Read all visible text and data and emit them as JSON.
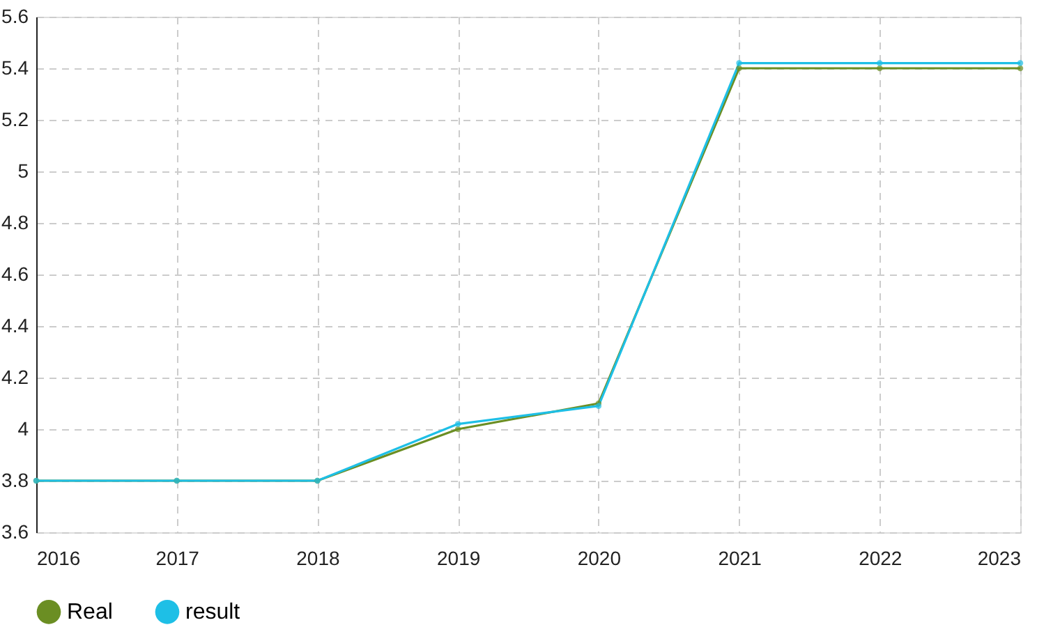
{
  "chart_data": {
    "type": "line",
    "x": [
      2016,
      2017,
      2018,
      2019,
      2020,
      2021,
      2022,
      2023
    ],
    "series": [
      {
        "name": "Real",
        "color": "#6b8e23",
        "values": [
          3.8,
          3.8,
          3.8,
          4.0,
          4.1,
          5.4,
          5.4,
          5.4
        ]
      },
      {
        "name": "result",
        "color": "#1ebfe6",
        "values": [
          3.8,
          3.8,
          3.8,
          4.02,
          4.09,
          5.42,
          5.42,
          5.42
        ]
      }
    ],
    "xlim": [
      2016,
      2023
    ],
    "xticks": [
      2016,
      2017,
      2018,
      2019,
      2020,
      2021,
      2022,
      2023
    ],
    "ylim": [
      3.6,
      5.6
    ],
    "yticks": [
      3.6,
      3.8,
      4,
      4.2,
      4.4,
      4.6,
      4.8,
      5,
      5.2,
      5.4,
      5.6
    ],
    "grid": true,
    "legend": "bottom left",
    "marker": "circle",
    "line_style": "solid"
  }
}
